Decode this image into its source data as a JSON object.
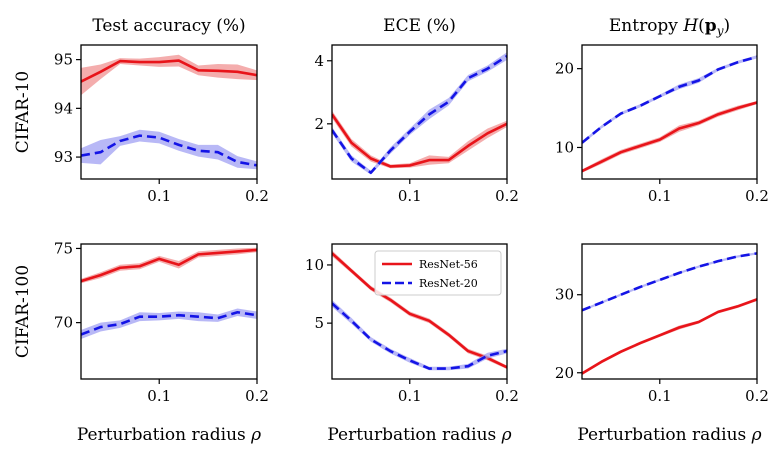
{
  "figure": {
    "row_labels": [
      "CIFAR-10",
      "CIFAR-100"
    ],
    "col_titles": [
      "Test accuracy (%)",
      "ECE (%)",
      "Entropy H(p_y)"
    ],
    "xlabel": "Perturbation radius ρ",
    "legend": [
      "ResNet-56",
      "ResNet-20"
    ],
    "colors": {
      "resnet56": "#e8141a",
      "resnet20": "#1414e6",
      "band56": "#f08a8a",
      "band20": "#9a9af2"
    }
  },
  "chart_data": [
    {
      "type": "line",
      "id": "c10-acc",
      "title": "Test accuracy (%)",
      "ylabel": "CIFAR-10",
      "xlabel": "",
      "x": [
        0.02,
        0.04,
        0.06,
        0.08,
        0.1,
        0.12,
        0.14,
        0.16,
        0.18,
        0.2
      ],
      "xlim": [
        0.02,
        0.2
      ],
      "ylim": [
        92.55,
        95.3
      ],
      "yticks": [
        93,
        94,
        95
      ],
      "xticks": [
        0.1,
        0.2
      ],
      "series": [
        {
          "name": "ResNet-56",
          "values": [
            94.55,
            94.75,
            94.97,
            94.95,
            94.95,
            94.98,
            94.78,
            94.77,
            94.75,
            94.68
          ],
          "band": [
            0.28,
            0.15,
            0.06,
            0.07,
            0.1,
            0.12,
            0.1,
            0.14,
            0.15,
            0.1
          ]
        },
        {
          "name": "ResNet-20",
          "values": [
            93.03,
            93.1,
            93.33,
            93.44,
            93.4,
            93.25,
            93.13,
            93.1,
            92.9,
            92.83
          ],
          "band": [
            0.15,
            0.25,
            0.1,
            0.12,
            0.12,
            0.12,
            0.12,
            0.15,
            0.12,
            0.08
          ]
        }
      ]
    },
    {
      "type": "line",
      "id": "c10-ece",
      "title": "ECE (%)",
      "ylabel": "",
      "xlabel": "",
      "x": [
        0.02,
        0.04,
        0.06,
        0.08,
        0.1,
        0.12,
        0.14,
        0.16,
        0.18,
        0.2
      ],
      "xlim": [
        0.02,
        0.2
      ],
      "ylim": [
        0.25,
        4.5
      ],
      "yticks": [
        2,
        4
      ],
      "xticks": [
        0.1,
        0.2
      ],
      "series": [
        {
          "name": "ResNet-56",
          "values": [
            2.3,
            1.4,
            0.9,
            0.65,
            0.68,
            0.85,
            0.85,
            1.3,
            1.7,
            2.0
          ],
          "band": [
            0.12,
            0.12,
            0.1,
            0.06,
            0.07,
            0.15,
            0.1,
            0.15,
            0.15,
            0.1
          ]
        },
        {
          "name": "ResNet-20",
          "values": [
            1.8,
            0.9,
            0.45,
            1.15,
            1.75,
            2.3,
            2.7,
            3.45,
            3.75,
            4.15
          ],
          "band": [
            0.1,
            0.1,
            0.06,
            0.1,
            0.1,
            0.15,
            0.12,
            0.1,
            0.1,
            0.12
          ]
        }
      ]
    },
    {
      "type": "line",
      "id": "c10-ent",
      "title": "Entropy H(p_y)",
      "ylabel": "",
      "xlabel": "",
      "x": [
        0.02,
        0.04,
        0.06,
        0.08,
        0.1,
        0.12,
        0.14,
        0.16,
        0.18,
        0.2
      ],
      "xlim": [
        0.02,
        0.2
      ],
      "ylim": [
        6.0,
        23.0
      ],
      "yticks": [
        10,
        20
      ],
      "xticks": [
        0.1,
        0.2
      ],
      "series": [
        {
          "name": "ResNet-56",
          "values": [
            7.0,
            8.2,
            9.4,
            10.2,
            11.0,
            12.4,
            13.1,
            14.2,
            15.0,
            15.7
          ],
          "band": [
            0.2,
            0.3,
            0.3,
            0.3,
            0.3,
            0.4,
            0.3,
            0.3,
            0.3,
            0.2
          ]
        },
        {
          "name": "ResNet-20",
          "values": [
            10.6,
            12.6,
            14.3,
            15.3,
            16.5,
            17.7,
            18.5,
            19.9,
            20.8,
            21.5
          ],
          "band": [
            0.2,
            0.2,
            0.2,
            0.2,
            0.2,
            0.3,
            0.3,
            0.2,
            0.2,
            0.2
          ]
        }
      ]
    },
    {
      "type": "line",
      "id": "c100-acc",
      "title": "",
      "ylabel": "CIFAR-100",
      "xlabel": "Perturbation radius ρ",
      "x": [
        0.02,
        0.04,
        0.06,
        0.08,
        0.1,
        0.12,
        0.14,
        0.16,
        0.18,
        0.2
      ],
      "xlim": [
        0.02,
        0.2
      ],
      "ylim": [
        66.2,
        75.3
      ],
      "yticks": [
        70,
        75
      ],
      "xticks": [
        0.1,
        0.2
      ],
      "series": [
        {
          "name": "ResNet-56",
          "values": [
            72.8,
            73.2,
            73.7,
            73.8,
            74.3,
            73.9,
            74.6,
            74.7,
            74.8,
            74.9
          ],
          "band": [
            0.15,
            0.2,
            0.2,
            0.2,
            0.2,
            0.25,
            0.2,
            0.2,
            0.2,
            0.15
          ]
        },
        {
          "name": "ResNet-20",
          "values": [
            69.2,
            69.7,
            69.9,
            70.4,
            70.4,
            70.5,
            70.4,
            70.3,
            70.7,
            70.5
          ],
          "band": [
            0.3,
            0.3,
            0.25,
            0.3,
            0.25,
            0.25,
            0.3,
            0.25,
            0.25,
            0.25
          ]
        }
      ]
    },
    {
      "type": "line",
      "id": "c100-ece",
      "title": "",
      "ylabel": "",
      "xlabel": "Perturbation radius ρ",
      "x": [
        0.02,
        0.04,
        0.06,
        0.08,
        0.1,
        0.12,
        0.14,
        0.16,
        0.18,
        0.2
      ],
      "xlim": [
        0.02,
        0.2
      ],
      "ylim": [
        0.2,
        11.8
      ],
      "yticks": [
        5,
        10
      ],
      "xticks": [
        0.1,
        0.2
      ],
      "series": [
        {
          "name": "ResNet-56",
          "values": [
            11.0,
            9.5,
            8.0,
            7.0,
            5.8,
            5.2,
            4.0,
            2.6,
            2.0,
            1.2
          ],
          "band": [
            0.25,
            0.2,
            0.2,
            0.2,
            0.2,
            0.2,
            0.2,
            0.2,
            0.2,
            0.15
          ]
        },
        {
          "name": "ResNet-20",
          "values": [
            6.7,
            5.2,
            3.6,
            2.6,
            1.8,
            1.1,
            1.1,
            1.3,
            2.2,
            2.6
          ],
          "band": [
            0.3,
            0.25,
            0.2,
            0.2,
            0.2,
            0.15,
            0.15,
            0.2,
            0.25,
            0.2
          ]
        }
      ]
    },
    {
      "type": "line",
      "id": "c100-ent",
      "title": "",
      "ylabel": "",
      "xlabel": "Perturbation radius ρ",
      "x": [
        0.02,
        0.04,
        0.06,
        0.08,
        0.1,
        0.12,
        0.14,
        0.16,
        0.18,
        0.2
      ],
      "xlim": [
        0.02,
        0.2
      ],
      "ylim": [
        19.2,
        36.5
      ],
      "yticks": [
        20,
        30
      ],
      "xticks": [
        0.1,
        0.2
      ],
      "series": [
        {
          "name": "ResNet-56",
          "values": [
            19.9,
            21.4,
            22.7,
            23.8,
            24.8,
            25.8,
            26.5,
            27.8,
            28.5,
            29.4
          ],
          "band": [
            0.2,
            0.2,
            0.2,
            0.2,
            0.2,
            0.25,
            0.2,
            0.2,
            0.2,
            0.2
          ]
        },
        {
          "name": "ResNet-20",
          "values": [
            28.0,
            29.0,
            30.0,
            31.0,
            31.9,
            32.8,
            33.6,
            34.3,
            34.9,
            35.3
          ],
          "band": [
            0.15,
            0.15,
            0.15,
            0.15,
            0.15,
            0.15,
            0.15,
            0.15,
            0.15,
            0.15
          ]
        }
      ]
    }
  ]
}
